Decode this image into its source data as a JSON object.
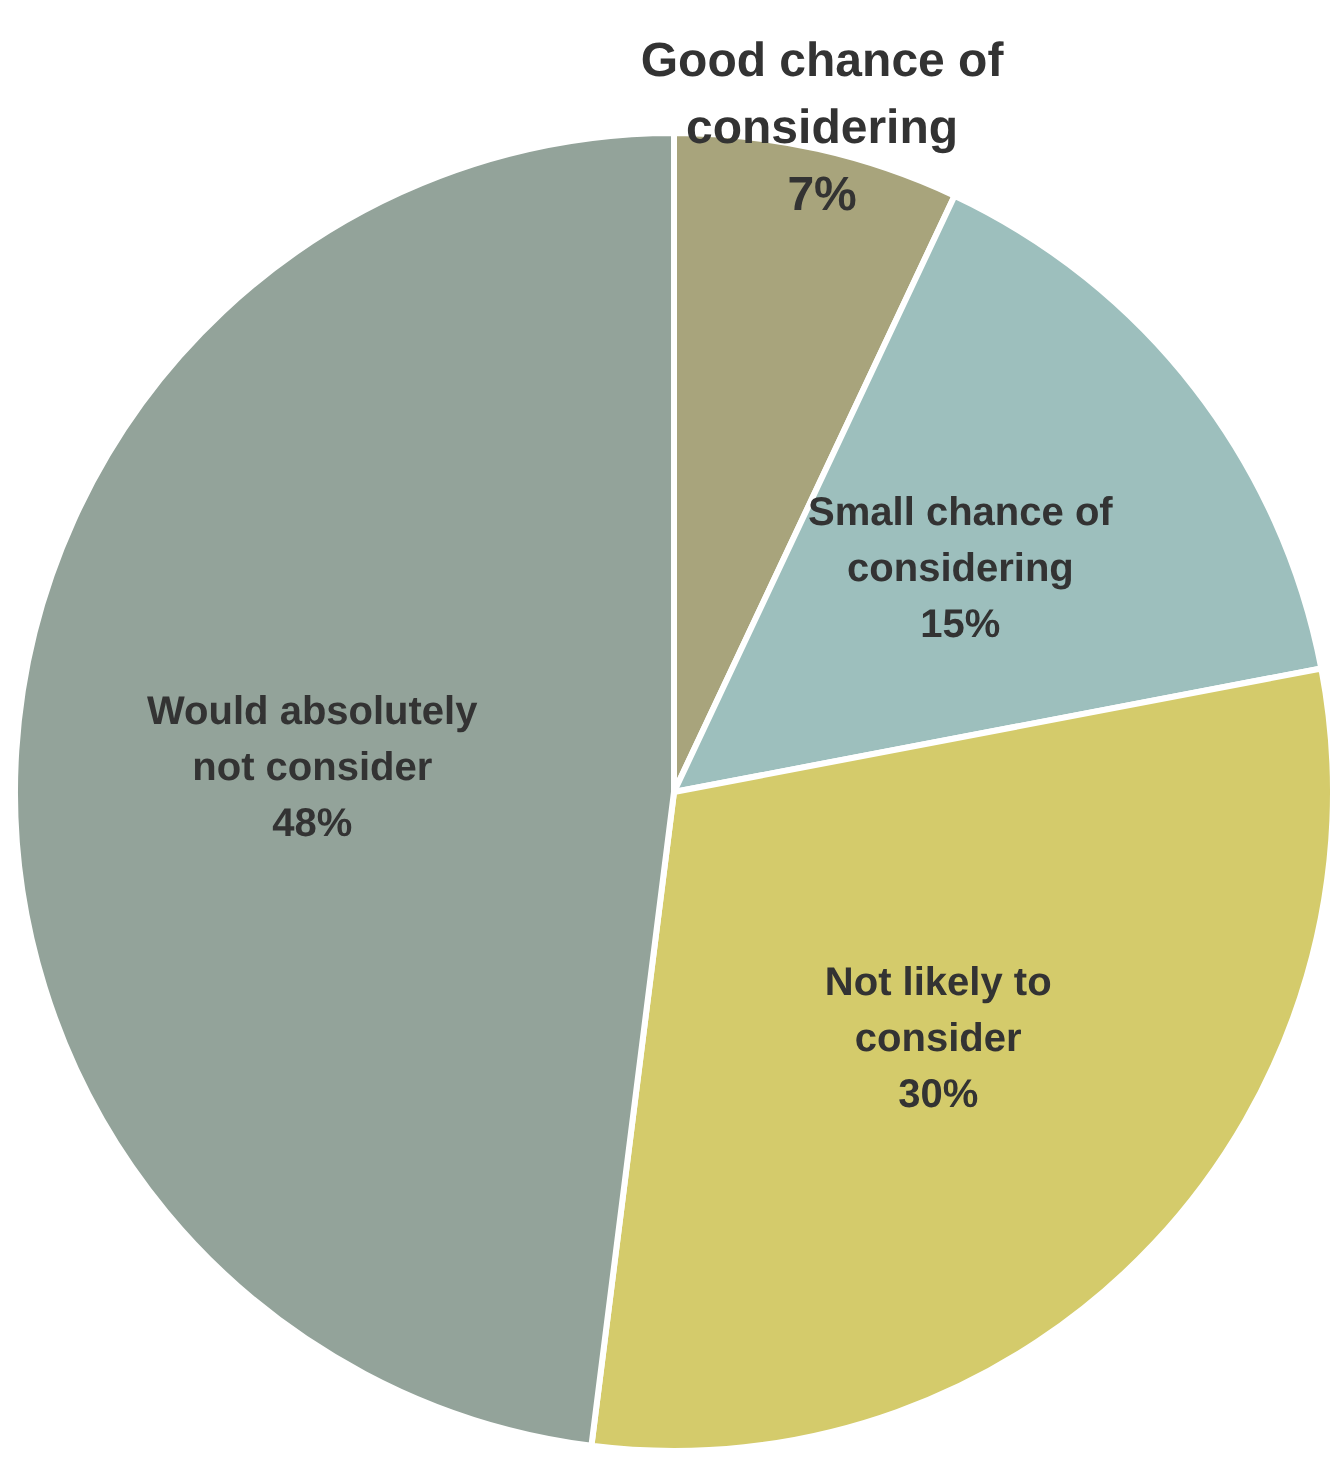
{
  "chart_data": {
    "type": "pie",
    "categories": [
      "Good chance of considering",
      "Small chance of considering",
      "Not likely to consider",
      "Would absolutely not consider"
    ],
    "values": [
      7,
      15,
      30,
      48
    ],
    "value_labels": [
      "7%",
      "15%",
      "30%",
      "48%"
    ],
    "colors": [
      "#a8a47c",
      "#9dbfbd",
      "#d4cb6b",
      "#93a39a"
    ],
    "legend": false
  }
}
